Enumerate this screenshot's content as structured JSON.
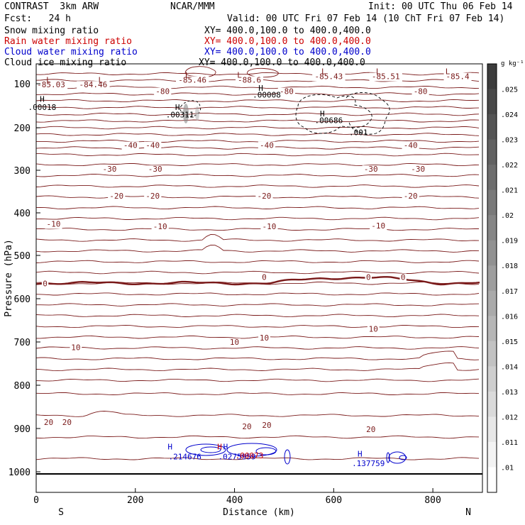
{
  "header": {
    "left_line1": "CONTRAST  3km ARW",
    "center_line1": "NCAR/MMM",
    "right_line1": "Init: 00 UTC Thu 06 Feb 14",
    "fcst": "Fcst:   24 h",
    "valid": "Valid: 00 UTC Fri 07 Feb 14 (10 ChT Fri 07 Feb 14)",
    "fields": [
      {
        "name": "Snow mixing ratio",
        "xy": "XY= 400.0,100.0 to 400.0,400.0",
        "color": "#000000"
      },
      {
        "name": "Rain water mixing ratio",
        "xy": "XY= 400.0,100.0 to 400.0,400.0",
        "color": "#cc0000"
      },
      {
        "name": "Cloud water mixing ratio",
        "xy": "XY= 400.0,100.0 to 400.0,400.0",
        "color": "#0000cc"
      },
      {
        "name": "Cloud ice mixing ratio",
        "xy": "XY= 400.0,100.0 to 400.0,400.0",
        "color": "#000000"
      }
    ]
  },
  "chart_data": {
    "type": "contour",
    "xlabel": "Distance (km)",
    "ylabel": "Pressure (hPa)",
    "xlim": [
      0,
      900
    ],
    "ylim": [
      1050,
      60
    ],
    "x_ticks": [
      "0",
      "200",
      "400",
      "600",
      "800"
    ],
    "y_ticks": [
      "100",
      "200",
      "300",
      "400",
      "500",
      "600",
      "700",
      "800",
      "900",
      "1000"
    ],
    "x_end_labels": {
      "left": "S",
      "right": "N"
    },
    "temperature_contour_color": "#7a1a1a",
    "temperature_contours": [
      {
        "label": "-80",
        "p": 110
      },
      {
        "label": "-40",
        "p": 240
      },
      {
        "label": "-30",
        "p": 297
      },
      {
        "label": "-20",
        "p": 360
      },
      {
        "label": "-10",
        "p": 430
      },
      {
        "label": "0",
        "p": 560
      },
      {
        "label": "10",
        "p": 680
      },
      {
        "label": "20",
        "p": 890
      }
    ],
    "contour_labels": [
      {
        "text": "-85.03",
        "x": 30,
        "p": 102
      },
      {
        "text": "-84.46",
        "x": 115,
        "p": 102
      },
      {
        "text": "-85.46",
        "x": 315,
        "p": 92
      },
      {
        "text": "-88.6",
        "x": 430,
        "p": 92
      },
      {
        "text": "-85.43",
        "x": 590,
        "p": 85
      },
      {
        "text": "-85.51",
        "x": 705,
        "p": 85
      },
      {
        "text": "-85.4",
        "x": 850,
        "p": 85
      },
      {
        "text": "-80",
        "x": 255,
        "p": 117
      },
      {
        "text": "-80",
        "x": 505,
        "p": 117
      },
      {
        "text": "-80",
        "x": 775,
        "p": 117
      },
      {
        "text": "-40",
        "x": 190,
        "p": 241
      },
      {
        "text": "-40",
        "x": 235,
        "p": 241
      },
      {
        "text": "-40",
        "x": 465,
        "p": 241
      },
      {
        "text": "-40",
        "x": 755,
        "p": 241
      },
      {
        "text": "-30",
        "x": 148,
        "p": 297
      },
      {
        "text": "-30",
        "x": 240,
        "p": 297
      },
      {
        "text": "-30",
        "x": 675,
        "p": 297
      },
      {
        "text": "-30",
        "x": 770,
        "p": 297
      },
      {
        "text": "-20",
        "x": 162,
        "p": 360
      },
      {
        "text": "-20",
        "x": 235,
        "p": 360
      },
      {
        "text": "-20",
        "x": 460,
        "p": 360
      },
      {
        "text": "-20",
        "x": 755,
        "p": 360
      },
      {
        "text": "-10",
        "x": 35,
        "p": 426
      },
      {
        "text": "-10",
        "x": 250,
        "p": 432
      },
      {
        "text": "-10",
        "x": 470,
        "p": 432
      },
      {
        "text": "-10",
        "x": 690,
        "p": 430
      },
      {
        "text": "0",
        "x": 18,
        "p": 565
      },
      {
        "text": "0",
        "x": 460,
        "p": 550
      },
      {
        "text": "0",
        "x": 670,
        "p": 550
      },
      {
        "text": "0",
        "x": 740,
        "p": 550
      },
      {
        "text": "10",
        "x": 80,
        "p": 712
      },
      {
        "text": "10",
        "x": 400,
        "p": 700
      },
      {
        "text": "10",
        "x": 460,
        "p": 690
      },
      {
        "text": "10",
        "x": 680,
        "p": 670
      },
      {
        "text": "20",
        "x": 25,
        "p": 885
      },
      {
        "text": "20",
        "x": 62,
        "p": 885
      },
      {
        "text": "20",
        "x": 425,
        "p": 895
      },
      {
        "text": "20",
        "x": 465,
        "p": 892
      },
      {
        "text": "20",
        "x": 675,
        "p": 902
      }
    ],
    "extrema_labels": [
      {
        "text": "L",
        "x": 25,
        "p": 92,
        "color": "#7a1a1a"
      },
      {
        "text": "L",
        "x": 130,
        "p": 92,
        "color": "#7a1a1a"
      },
      {
        "text": "L",
        "x": 305,
        "p": 82,
        "color": "#7a1a1a"
      },
      {
        "text": "L",
        "x": 410,
        "p": 82,
        "color": "#7a1a1a"
      },
      {
        "text": "L",
        "x": 580,
        "p": 75,
        "color": "#7a1a1a"
      },
      {
        "text": "L",
        "x": 690,
        "p": 75,
        "color": "#7a1a1a"
      },
      {
        "text": "L",
        "x": 830,
        "p": 75,
        "color": "#7a1a1a"
      },
      {
        "text": "H",
        "x": 12,
        "p": 135,
        "color": "#000000"
      },
      {
        "text": ".00018",
        "x": 12,
        "p": 153,
        "color": "#000000"
      },
      {
        "text": "H",
        "x": 285,
        "p": 153,
        "color": "#000000"
      },
      {
        "text": ".00311",
        "x": 290,
        "p": 170,
        "color": "#000000"
      },
      {
        "text": "H",
        "x": 453,
        "p": 110,
        "color": "#000000"
      },
      {
        "text": ".00008",
        "x": 465,
        "p": 125,
        "color": "#000000"
      },
      {
        "text": "H",
        "x": 577,
        "p": 168,
        "color": "#000000"
      },
      {
        "text": ".00686",
        "x": 590,
        "p": 183,
        "color": "#000000"
      },
      {
        "text": ".001",
        "x": 650,
        "p": 211,
        "color": "#000000"
      },
      {
        "text": "H",
        "x": 270,
        "p": 942,
        "color": "#0000cc"
      },
      {
        "text": ".214676",
        "x": 300,
        "p": 965,
        "color": "#0000cc"
      },
      {
        "text": "H",
        "x": 370,
        "p": 942,
        "color": "#cc0000"
      },
      {
        "text": "H",
        "x": 382,
        "p": 942,
        "color": "#0000cc"
      },
      {
        "text": ".0275959",
        "x": 405,
        "p": 965,
        "color": "#0000cc"
      },
      {
        "text": ".00073",
        "x": 430,
        "p": 962,
        "color": "#cc0000"
      },
      {
        "text": "H",
        "x": 653,
        "p": 958,
        "color": "#0000cc"
      },
      {
        "text": ".137759",
        "x": 670,
        "p": 980,
        "color": "#0000cc"
      }
    ],
    "colorbar": {
      "unit": "g kg⁻¹",
      "labels": [
        ".025",
        ".024",
        ".023",
        ".022",
        ".021",
        ".02",
        ".019",
        ".018",
        ".017",
        ".016",
        ".015",
        ".014",
        ".013",
        ".012",
        ".011",
        ".01"
      ]
    }
  }
}
